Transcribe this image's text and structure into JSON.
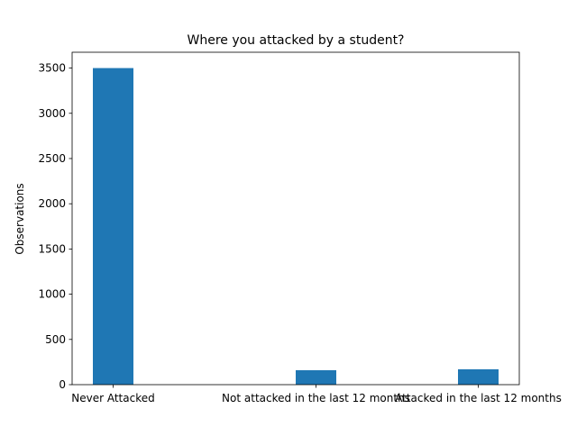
{
  "chart_data": {
    "type": "bar",
    "title": "Where you attacked by a student?",
    "xlabel": "",
    "ylabel": "Observations",
    "categories": [
      "Never Attacked",
      "Not attacked in the last 12 months",
      "Attacked in the last 12 months"
    ],
    "values": [
      3500,
      160,
      170
    ],
    "ylim": [
      0,
      3675
    ],
    "yticks": [
      0,
      500,
      1000,
      1500,
      2000,
      2500,
      3000,
      3500
    ],
    "grid": false,
    "legend": "none",
    "bar_color": "#1f77b4"
  }
}
